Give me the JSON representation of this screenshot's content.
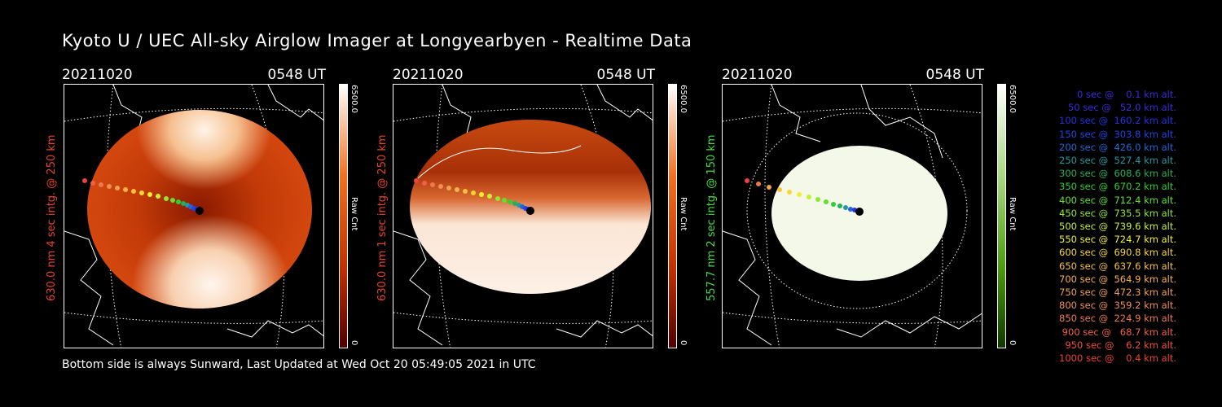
{
  "title": "Kyoto U / UEC All-sky Airglow Imager at Longyearbyen - Realtime Data",
  "footer": "Bottom side is always Sunward, Last Updated at Wed Oct 20 05:49:05 2021 in UTC",
  "panels": [
    {
      "date": "20211020",
      "time": "0548 UT",
      "ylabel": "630.0 nm 4 sec intg. @ 250 km",
      "ylabel_color": "#e8432b",
      "colorbar_max": "6500.0",
      "colorbar_min": "0",
      "colorbar_label": "Raw Cnt",
      "colorbar_colors": [
        "#ffffff",
        "#f07020",
        "#c03000",
        "#500000"
      ]
    },
    {
      "date": "20211020",
      "time": "0548 UT",
      "ylabel": "630.0 nm 1 sec intg. @ 250 km",
      "ylabel_color": "#e8432b",
      "colorbar_max": "6500.0",
      "colorbar_min": "0",
      "colorbar_label": "Raw Cnt",
      "colorbar_colors": [
        "#ffffff",
        "#f07020",
        "#c03000",
        "#500000"
      ]
    },
    {
      "date": "20211020",
      "time": "0548 UT",
      "ylabel": "557.7 nm 2 sec intg. @ 150 km",
      "ylabel_color": "#44dd44",
      "colorbar_max": "6500.0",
      "colorbar_min": "0",
      "colorbar_label": "Raw Cnt",
      "colorbar_colors": [
        "#ffffff",
        "#a8d880",
        "#4a9a10",
        "#103800"
      ]
    }
  ],
  "legend": [
    {
      "text": "   0 sec @    0.1 km alt.",
      "color": "#3a2ad8"
    },
    {
      "text": "  50 sec @   52.0 km alt.",
      "color": "#3a2ad8"
    },
    {
      "text": " 100 sec @  160.2 km alt.",
      "color": "#2233e0"
    },
    {
      "text": " 150 sec @  303.8 km alt.",
      "color": "#2244e8"
    },
    {
      "text": " 200 sec @  426.0 km alt.",
      "color": "#2266d8"
    },
    {
      "text": " 250 sec @  527.4 km alt.",
      "color": "#229aa0"
    },
    {
      "text": " 300 sec @  608.6 km alt.",
      "color": "#22b060"
    },
    {
      "text": " 350 sec @  670.2 km alt.",
      "color": "#30d030"
    },
    {
      "text": " 400 sec @  712.4 km alt.",
      "color": "#60e030"
    },
    {
      "text": " 450 sec @  735.5 km alt.",
      "color": "#90e830"
    },
    {
      "text": " 500 sec @  739.6 km alt.",
      "color": "#c8f030"
    },
    {
      "text": " 550 sec @  724.7 km alt.",
      "color": "#f0f030"
    },
    {
      "text": " 600 sec @  690.8 km alt.",
      "color": "#f8d830"
    },
    {
      "text": " 650 sec @  637.6 km alt.",
      "color": "#f8c040"
    },
    {
      "text": " 700 sec @  564.9 km alt.",
      "color": "#f8b048"
    },
    {
      "text": " 750 sec @  472.3 km alt.",
      "color": "#f0a050"
    },
    {
      "text": " 800 sec @  359.2 km alt.",
      "color": "#f09050"
    },
    {
      "text": " 850 sec @  224.9 km alt.",
      "color": "#f07850"
    },
    {
      "text": " 900 sec @   68.7 km alt.",
      "color": "#f06048"
    },
    {
      "text": " 950 sec @    6.2 km alt.",
      "color": "#f05040"
    },
    {
      "text": "1000 sec @    0.4 km alt.",
      "color": "#f04038"
    }
  ]
}
